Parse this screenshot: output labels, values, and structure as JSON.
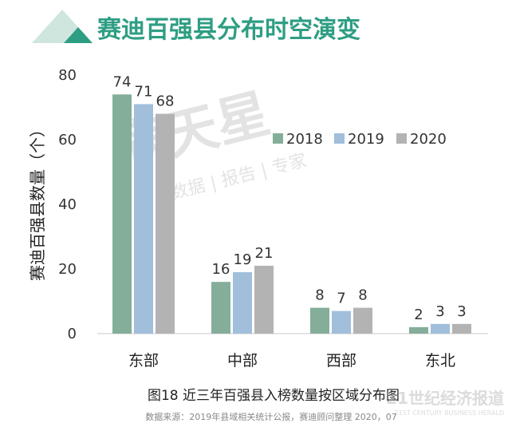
{
  "header": {
    "title": "赛迪百强县分布时空演变"
  },
  "watermark": {
    "brand": "满天星",
    "tagline": "数据 | 报告 | 专家",
    "corner_logo": "21世纪经济报道",
    "corner_logo_en": "21ST CENTURY BUSINESS HERALD"
  },
  "colors": {
    "accent": "#2e9e83",
    "accent_light": "#c6e3d9",
    "s2018": "#84ae9a",
    "s2019": "#a1bedb",
    "s2020": "#b3b3b3",
    "axis": "#c8c8c8",
    "text": "#333333",
    "source": "#888888"
  },
  "chart_data": {
    "type": "bar",
    "title": "",
    "caption": "图18 近三年百强县入榜数量按区域分布图",
    "source": "数据来源：2019年县域相关统计公报，赛迪顾问整理  2020，07",
    "xlabel": "",
    "ylabel": "赛迪百强县数量（个）",
    "ylim": [
      0,
      80
    ],
    "yticks": [
      0,
      20,
      40,
      60,
      80
    ],
    "grid": false,
    "legend_position": "top-right",
    "categories": [
      "东部",
      "中部",
      "西部",
      "东北"
    ],
    "series": [
      {
        "name": "2018",
        "values": [
          74,
          16,
          8,
          2
        ]
      },
      {
        "name": "2019",
        "values": [
          71,
          19,
          7,
          3
        ]
      },
      {
        "name": "2020",
        "values": [
          68,
          21,
          8,
          3
        ]
      }
    ]
  }
}
